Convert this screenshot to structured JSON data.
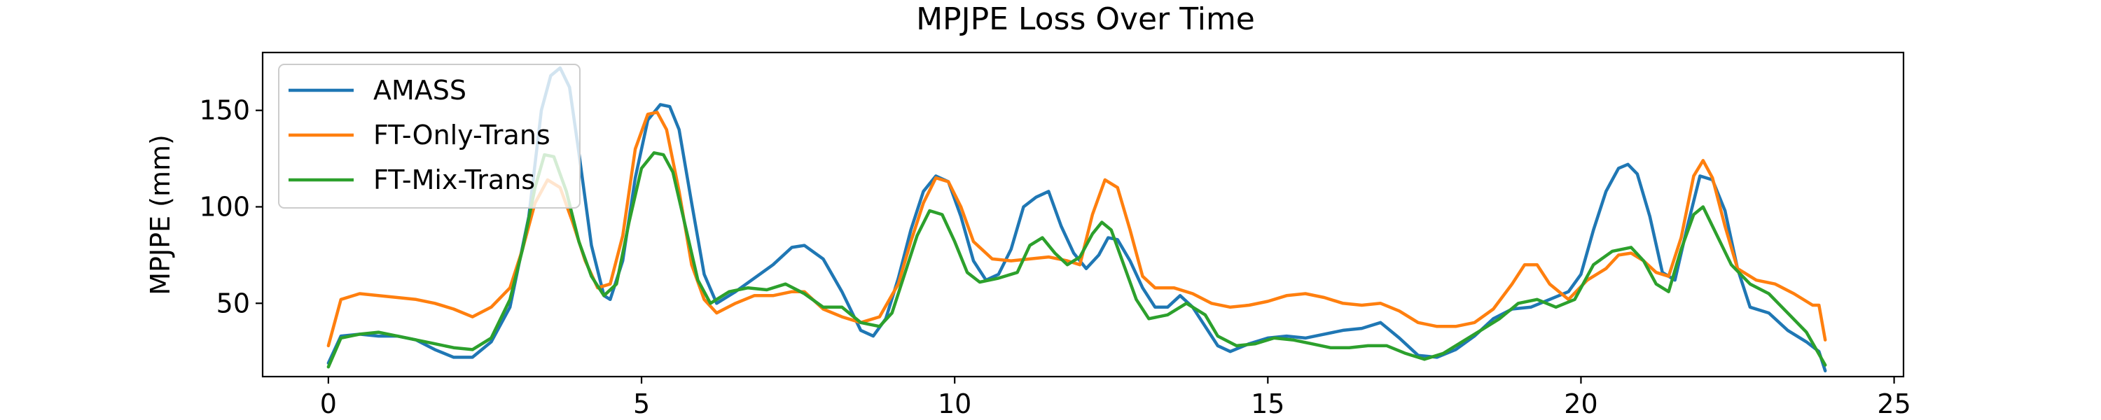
{
  "chart_data": {
    "type": "line",
    "title": "MPJPE Loss Over Time",
    "xlabel": "",
    "ylabel": "MPJPE (mm)",
    "xlim": [
      -1.05,
      25.15
    ],
    "ylim": [
      12,
      180
    ],
    "xticks": [
      0,
      5,
      10,
      15,
      20,
      25
    ],
    "yticks": [
      50,
      100,
      150
    ],
    "grid": false,
    "legend_position": "upper-left",
    "series": [
      {
        "name": "AMASS",
        "color": "#1f77b4",
        "points": [
          [
            0,
            19
          ],
          [
            0.2,
            33
          ],
          [
            0.5,
            34
          ],
          [
            0.8,
            33
          ],
          [
            1.1,
            33
          ],
          [
            1.4,
            31
          ],
          [
            1.7,
            26
          ],
          [
            2.0,
            22
          ],
          [
            2.3,
            22
          ],
          [
            2.6,
            30
          ],
          [
            2.9,
            48
          ],
          [
            3.2,
            95
          ],
          [
            3.4,
            150
          ],
          [
            3.55,
            168
          ],
          [
            3.7,
            172
          ],
          [
            3.85,
            162
          ],
          [
            4.0,
            128
          ],
          [
            4.2,
            80
          ],
          [
            4.4,
            54
          ],
          [
            4.5,
            52
          ],
          [
            4.7,
            72
          ],
          [
            4.9,
            115
          ],
          [
            5.1,
            145
          ],
          [
            5.3,
            153
          ],
          [
            5.45,
            152
          ],
          [
            5.6,
            140
          ],
          [
            5.8,
            102
          ],
          [
            6.0,
            65
          ],
          [
            6.2,
            50
          ],
          [
            6.5,
            56
          ],
          [
            6.8,
            63
          ],
          [
            7.1,
            70
          ],
          [
            7.4,
            79
          ],
          [
            7.6,
            80
          ],
          [
            7.9,
            73
          ],
          [
            8.2,
            56
          ],
          [
            8.5,
            36
          ],
          [
            8.7,
            33
          ],
          [
            8.9,
            42
          ],
          [
            9.1,
            63
          ],
          [
            9.3,
            88
          ],
          [
            9.5,
            108
          ],
          [
            9.7,
            116
          ],
          [
            9.9,
            113
          ],
          [
            10.1,
            95
          ],
          [
            10.3,
            72
          ],
          [
            10.5,
            62
          ],
          [
            10.7,
            65
          ],
          [
            10.9,
            78
          ],
          [
            11.1,
            100
          ],
          [
            11.3,
            105
          ],
          [
            11.5,
            108
          ],
          [
            11.7,
            90
          ],
          [
            11.9,
            76
          ],
          [
            12.1,
            68
          ],
          [
            12.3,
            75
          ],
          [
            12.45,
            84
          ],
          [
            12.6,
            83
          ],
          [
            12.8,
            72
          ],
          [
            13.0,
            58
          ],
          [
            13.2,
            48
          ],
          [
            13.4,
            48
          ],
          [
            13.6,
            54
          ],
          [
            13.8,
            48
          ],
          [
            14.0,
            38
          ],
          [
            14.2,
            28
          ],
          [
            14.4,
            25
          ],
          [
            14.7,
            29
          ],
          [
            15.0,
            32
          ],
          [
            15.3,
            33
          ],
          [
            15.6,
            32
          ],
          [
            15.9,
            34
          ],
          [
            16.2,
            36
          ],
          [
            16.5,
            37
          ],
          [
            16.8,
            40
          ],
          [
            17.1,
            32
          ],
          [
            17.4,
            23
          ],
          [
            17.7,
            22
          ],
          [
            18.0,
            26
          ],
          [
            18.3,
            33
          ],
          [
            18.6,
            42
          ],
          [
            18.9,
            47
          ],
          [
            19.2,
            48
          ],
          [
            19.5,
            52
          ],
          [
            19.8,
            56
          ],
          [
            20.0,
            65
          ],
          [
            20.2,
            88
          ],
          [
            20.4,
            108
          ],
          [
            20.6,
            120
          ],
          [
            20.75,
            122
          ],
          [
            20.9,
            117
          ],
          [
            21.1,
            95
          ],
          [
            21.3,
            66
          ],
          [
            21.5,
            62
          ],
          [
            21.7,
            90
          ],
          [
            21.9,
            116
          ],
          [
            22.1,
            114
          ],
          [
            22.3,
            98
          ],
          [
            22.5,
            68
          ],
          [
            22.7,
            48
          ],
          [
            23.0,
            45
          ],
          [
            23.3,
            36
          ],
          [
            23.6,
            30
          ],
          [
            23.8,
            25
          ],
          [
            23.9,
            15
          ]
        ]
      },
      {
        "name": "FT-Only-Trans",
        "color": "#ff7f0e",
        "points": [
          [
            0,
            28
          ],
          [
            0.2,
            52
          ],
          [
            0.5,
            55
          ],
          [
            0.8,
            54
          ],
          [
            1.1,
            53
          ],
          [
            1.4,
            52
          ],
          [
            1.7,
            50
          ],
          [
            2.0,
            47
          ],
          [
            2.3,
            43
          ],
          [
            2.6,
            48
          ],
          [
            2.9,
            58
          ],
          [
            3.1,
            78
          ],
          [
            3.3,
            102
          ],
          [
            3.5,
            114
          ],
          [
            3.7,
            110
          ],
          [
            3.9,
            92
          ],
          [
            4.1,
            72
          ],
          [
            4.3,
            58
          ],
          [
            4.5,
            60
          ],
          [
            4.7,
            85
          ],
          [
            4.9,
            130
          ],
          [
            5.1,
            148
          ],
          [
            5.25,
            149
          ],
          [
            5.4,
            140
          ],
          [
            5.6,
            108
          ],
          [
            5.8,
            70
          ],
          [
            6.0,
            52
          ],
          [
            6.2,
            45
          ],
          [
            6.5,
            50
          ],
          [
            6.8,
            54
          ],
          [
            7.1,
            54
          ],
          [
            7.4,
            56
          ],
          [
            7.6,
            56
          ],
          [
            7.9,
            47
          ],
          [
            8.2,
            43
          ],
          [
            8.5,
            40
          ],
          [
            8.8,
            43
          ],
          [
            9.1,
            60
          ],
          [
            9.3,
            82
          ],
          [
            9.5,
            102
          ],
          [
            9.7,
            115
          ],
          [
            9.9,
            113
          ],
          [
            10.1,
            100
          ],
          [
            10.3,
            82
          ],
          [
            10.6,
            73
          ],
          [
            10.9,
            72
          ],
          [
            11.2,
            73
          ],
          [
            11.5,
            74
          ],
          [
            11.8,
            72
          ],
          [
            12.0,
            70
          ],
          [
            12.2,
            96
          ],
          [
            12.4,
            114
          ],
          [
            12.6,
            110
          ],
          [
            12.8,
            88
          ],
          [
            13.0,
            64
          ],
          [
            13.2,
            58
          ],
          [
            13.5,
            58
          ],
          [
            13.8,
            55
          ],
          [
            14.1,
            50
          ],
          [
            14.4,
            48
          ],
          [
            14.7,
            49
          ],
          [
            15.0,
            51
          ],
          [
            15.3,
            54
          ],
          [
            15.6,
            55
          ],
          [
            15.9,
            53
          ],
          [
            16.2,
            50
          ],
          [
            16.5,
            49
          ],
          [
            16.8,
            50
          ],
          [
            17.1,
            46
          ],
          [
            17.4,
            40
          ],
          [
            17.7,
            38
          ],
          [
            18.0,
            38
          ],
          [
            18.3,
            40
          ],
          [
            18.6,
            47
          ],
          [
            18.9,
            60
          ],
          [
            19.1,
            70
          ],
          [
            19.3,
            70
          ],
          [
            19.5,
            60
          ],
          [
            19.8,
            52
          ],
          [
            20.1,
            62
          ],
          [
            20.4,
            68
          ],
          [
            20.6,
            75
          ],
          [
            20.8,
            76
          ],
          [
            21.0,
            72
          ],
          [
            21.2,
            66
          ],
          [
            21.4,
            64
          ],
          [
            21.6,
            84
          ],
          [
            21.8,
            116
          ],
          [
            21.95,
            124
          ],
          [
            22.1,
            115
          ],
          [
            22.3,
            90
          ],
          [
            22.5,
            68
          ],
          [
            22.8,
            62
          ],
          [
            23.1,
            60
          ],
          [
            23.4,
            55
          ],
          [
            23.7,
            49
          ],
          [
            23.8,
            49
          ],
          [
            23.9,
            31
          ]
        ]
      },
      {
        "name": "FT-Mix-Trans",
        "color": "#2ca02c",
        "points": [
          [
            0,
            17
          ],
          [
            0.2,
            32
          ],
          [
            0.5,
            34
          ],
          [
            0.8,
            35
          ],
          [
            1.1,
            33
          ],
          [
            1.4,
            31
          ],
          [
            1.7,
            29
          ],
          [
            2.0,
            27
          ],
          [
            2.3,
            26
          ],
          [
            2.6,
            32
          ],
          [
            2.9,
            52
          ],
          [
            3.1,
            78
          ],
          [
            3.3,
            110
          ],
          [
            3.45,
            127
          ],
          [
            3.6,
            126
          ],
          [
            3.8,
            108
          ],
          [
            4.0,
            82
          ],
          [
            4.2,
            64
          ],
          [
            4.4,
            54
          ],
          [
            4.6,
            60
          ],
          [
            4.8,
            92
          ],
          [
            5.0,
            120
          ],
          [
            5.2,
            128
          ],
          [
            5.35,
            127
          ],
          [
            5.5,
            118
          ],
          [
            5.7,
            90
          ],
          [
            5.9,
            62
          ],
          [
            6.1,
            50
          ],
          [
            6.4,
            56
          ],
          [
            6.7,
            58
          ],
          [
            7.0,
            57
          ],
          [
            7.3,
            60
          ],
          [
            7.6,
            55
          ],
          [
            7.9,
            48
          ],
          [
            8.2,
            48
          ],
          [
            8.5,
            40
          ],
          [
            8.8,
            38
          ],
          [
            9.0,
            45
          ],
          [
            9.2,
            65
          ],
          [
            9.4,
            85
          ],
          [
            9.6,
            98
          ],
          [
            9.8,
            96
          ],
          [
            10.0,
            82
          ],
          [
            10.2,
            66
          ],
          [
            10.4,
            61
          ],
          [
            10.7,
            63
          ],
          [
            11.0,
            66
          ],
          [
            11.2,
            80
          ],
          [
            11.4,
            84
          ],
          [
            11.6,
            76
          ],
          [
            11.8,
            70
          ],
          [
            12.0,
            74
          ],
          [
            12.2,
            86
          ],
          [
            12.35,
            92
          ],
          [
            12.5,
            88
          ],
          [
            12.7,
            70
          ],
          [
            12.9,
            52
          ],
          [
            13.1,
            42
          ],
          [
            13.4,
            44
          ],
          [
            13.7,
            50
          ],
          [
            14.0,
            44
          ],
          [
            14.2,
            33
          ],
          [
            14.5,
            28
          ],
          [
            14.8,
            29
          ],
          [
            15.1,
            32
          ],
          [
            15.4,
            31
          ],
          [
            15.7,
            29
          ],
          [
            16.0,
            27
          ],
          [
            16.3,
            27
          ],
          [
            16.6,
            28
          ],
          [
            16.9,
            28
          ],
          [
            17.2,
            24
          ],
          [
            17.5,
            21
          ],
          [
            17.8,
            24
          ],
          [
            18.1,
            30
          ],
          [
            18.4,
            36
          ],
          [
            18.7,
            42
          ],
          [
            19.0,
            50
          ],
          [
            19.3,
            52
          ],
          [
            19.6,
            48
          ],
          [
            19.9,
            52
          ],
          [
            20.2,
            70
          ],
          [
            20.5,
            77
          ],
          [
            20.8,
            79
          ],
          [
            21.0,
            72
          ],
          [
            21.2,
            60
          ],
          [
            21.4,
            56
          ],
          [
            21.6,
            78
          ],
          [
            21.8,
            96
          ],
          [
            21.95,
            100
          ],
          [
            22.1,
            90
          ],
          [
            22.4,
            70
          ],
          [
            22.7,
            60
          ],
          [
            23.0,
            55
          ],
          [
            23.3,
            45
          ],
          [
            23.6,
            35
          ],
          [
            23.9,
            18
          ]
        ]
      }
    ]
  }
}
